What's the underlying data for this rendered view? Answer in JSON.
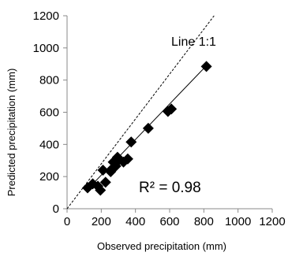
{
  "chart_data": {
    "type": "scatter",
    "xlabel": "Observed precipitation (mm)",
    "ylabel": "Predicted precipitation (mm)",
    "xlim": [
      0,
      1200
    ],
    "ylim": [
      0,
      1200
    ],
    "x_ticks": [
      "0",
      "200",
      "400",
      "600",
      "800",
      "1000",
      "1200"
    ],
    "y_ticks": [
      "0",
      "200",
      "400",
      "600",
      "800",
      "1000",
      "1200"
    ],
    "grid": false,
    "marker": "diamond",
    "points": [
      {
        "x": 120,
        "y": 130
      },
      {
        "x": 150,
        "y": 155
      },
      {
        "x": 180,
        "y": 140
      },
      {
        "x": 195,
        "y": 115
      },
      {
        "x": 210,
        "y": 240
      },
      {
        "x": 225,
        "y": 165
      },
      {
        "x": 255,
        "y": 230
      },
      {
        "x": 265,
        "y": 250
      },
      {
        "x": 270,
        "y": 290
      },
      {
        "x": 285,
        "y": 265
      },
      {
        "x": 295,
        "y": 320
      },
      {
        "x": 300,
        "y": 300
      },
      {
        "x": 330,
        "y": 290
      },
      {
        "x": 355,
        "y": 310
      },
      {
        "x": 375,
        "y": 415
      },
      {
        "x": 475,
        "y": 500
      },
      {
        "x": 590,
        "y": 605
      },
      {
        "x": 610,
        "y": 620
      },
      {
        "x": 815,
        "y": 885
      }
    ],
    "fit_line": {
      "x1": 115,
      "y1": 115,
      "x2": 820,
      "y2": 895
    },
    "reference_line": {
      "x1": 0,
      "y1": 0,
      "x2": 860,
      "y2": 1200
    },
    "annotations": {
      "line_label": "Line 1:1",
      "r_squared": "R² = 0.98"
    }
  }
}
